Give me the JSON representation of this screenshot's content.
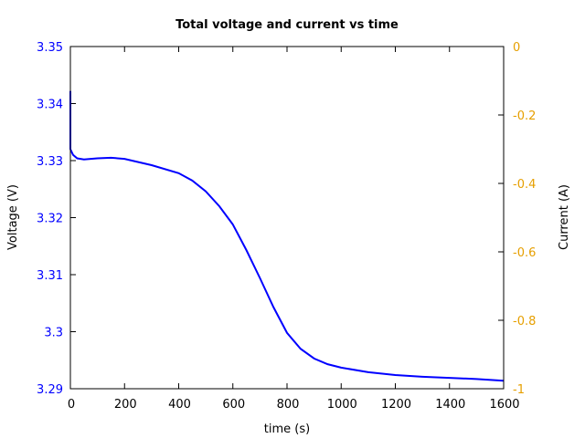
{
  "chart_data": {
    "type": "line",
    "title": "Total voltage and current vs time",
    "xlabel": "time (s)",
    "ylabel": "Voltage (V)",
    "y2label": "Current (A)",
    "xlim": [
      0,
      1600
    ],
    "ylim": [
      3.29,
      3.35
    ],
    "y2lim": [
      -1,
      0
    ],
    "xticks": [
      "0",
      "200",
      "400",
      "600",
      "800",
      "1000",
      "1200",
      "1400",
      "1600"
    ],
    "yticks": [
      "3.29",
      "3.3",
      "3.31",
      "3.32",
      "3.33",
      "3.34",
      "3.35"
    ],
    "y2ticks": [
      "-1",
      "-0.8",
      "-0.6",
      "-0.4",
      "-0.2",
      "0"
    ],
    "grid": false,
    "legend": null,
    "series": [
      {
        "name": "Voltage",
        "axis": "left",
        "color": "#0000ff",
        "x": [
          0,
          0,
          2,
          10,
          25,
          50,
          100,
          150,
          200,
          300,
          400,
          450,
          500,
          550,
          600,
          650,
          700,
          750,
          800,
          850,
          900,
          950,
          1000,
          1100,
          1200,
          1300,
          1400,
          1500,
          1600
        ],
        "values": [
          3.3422,
          3.332,
          3.3318,
          3.331,
          3.3304,
          3.3302,
          3.3304,
          3.3305,
          3.3303,
          3.3292,
          3.3278,
          3.3265,
          3.3246,
          3.322,
          3.3188,
          3.3143,
          3.3094,
          3.3043,
          3.2998,
          3.297,
          3.2953,
          3.2943,
          3.2937,
          3.2929,
          3.2924,
          3.2921,
          3.2919,
          3.2917,
          3.2914
        ]
      }
    ]
  },
  "colors": {
    "left_axis": "#0000ff",
    "right_axis": "#e69f00",
    "line": "#0000ff"
  }
}
